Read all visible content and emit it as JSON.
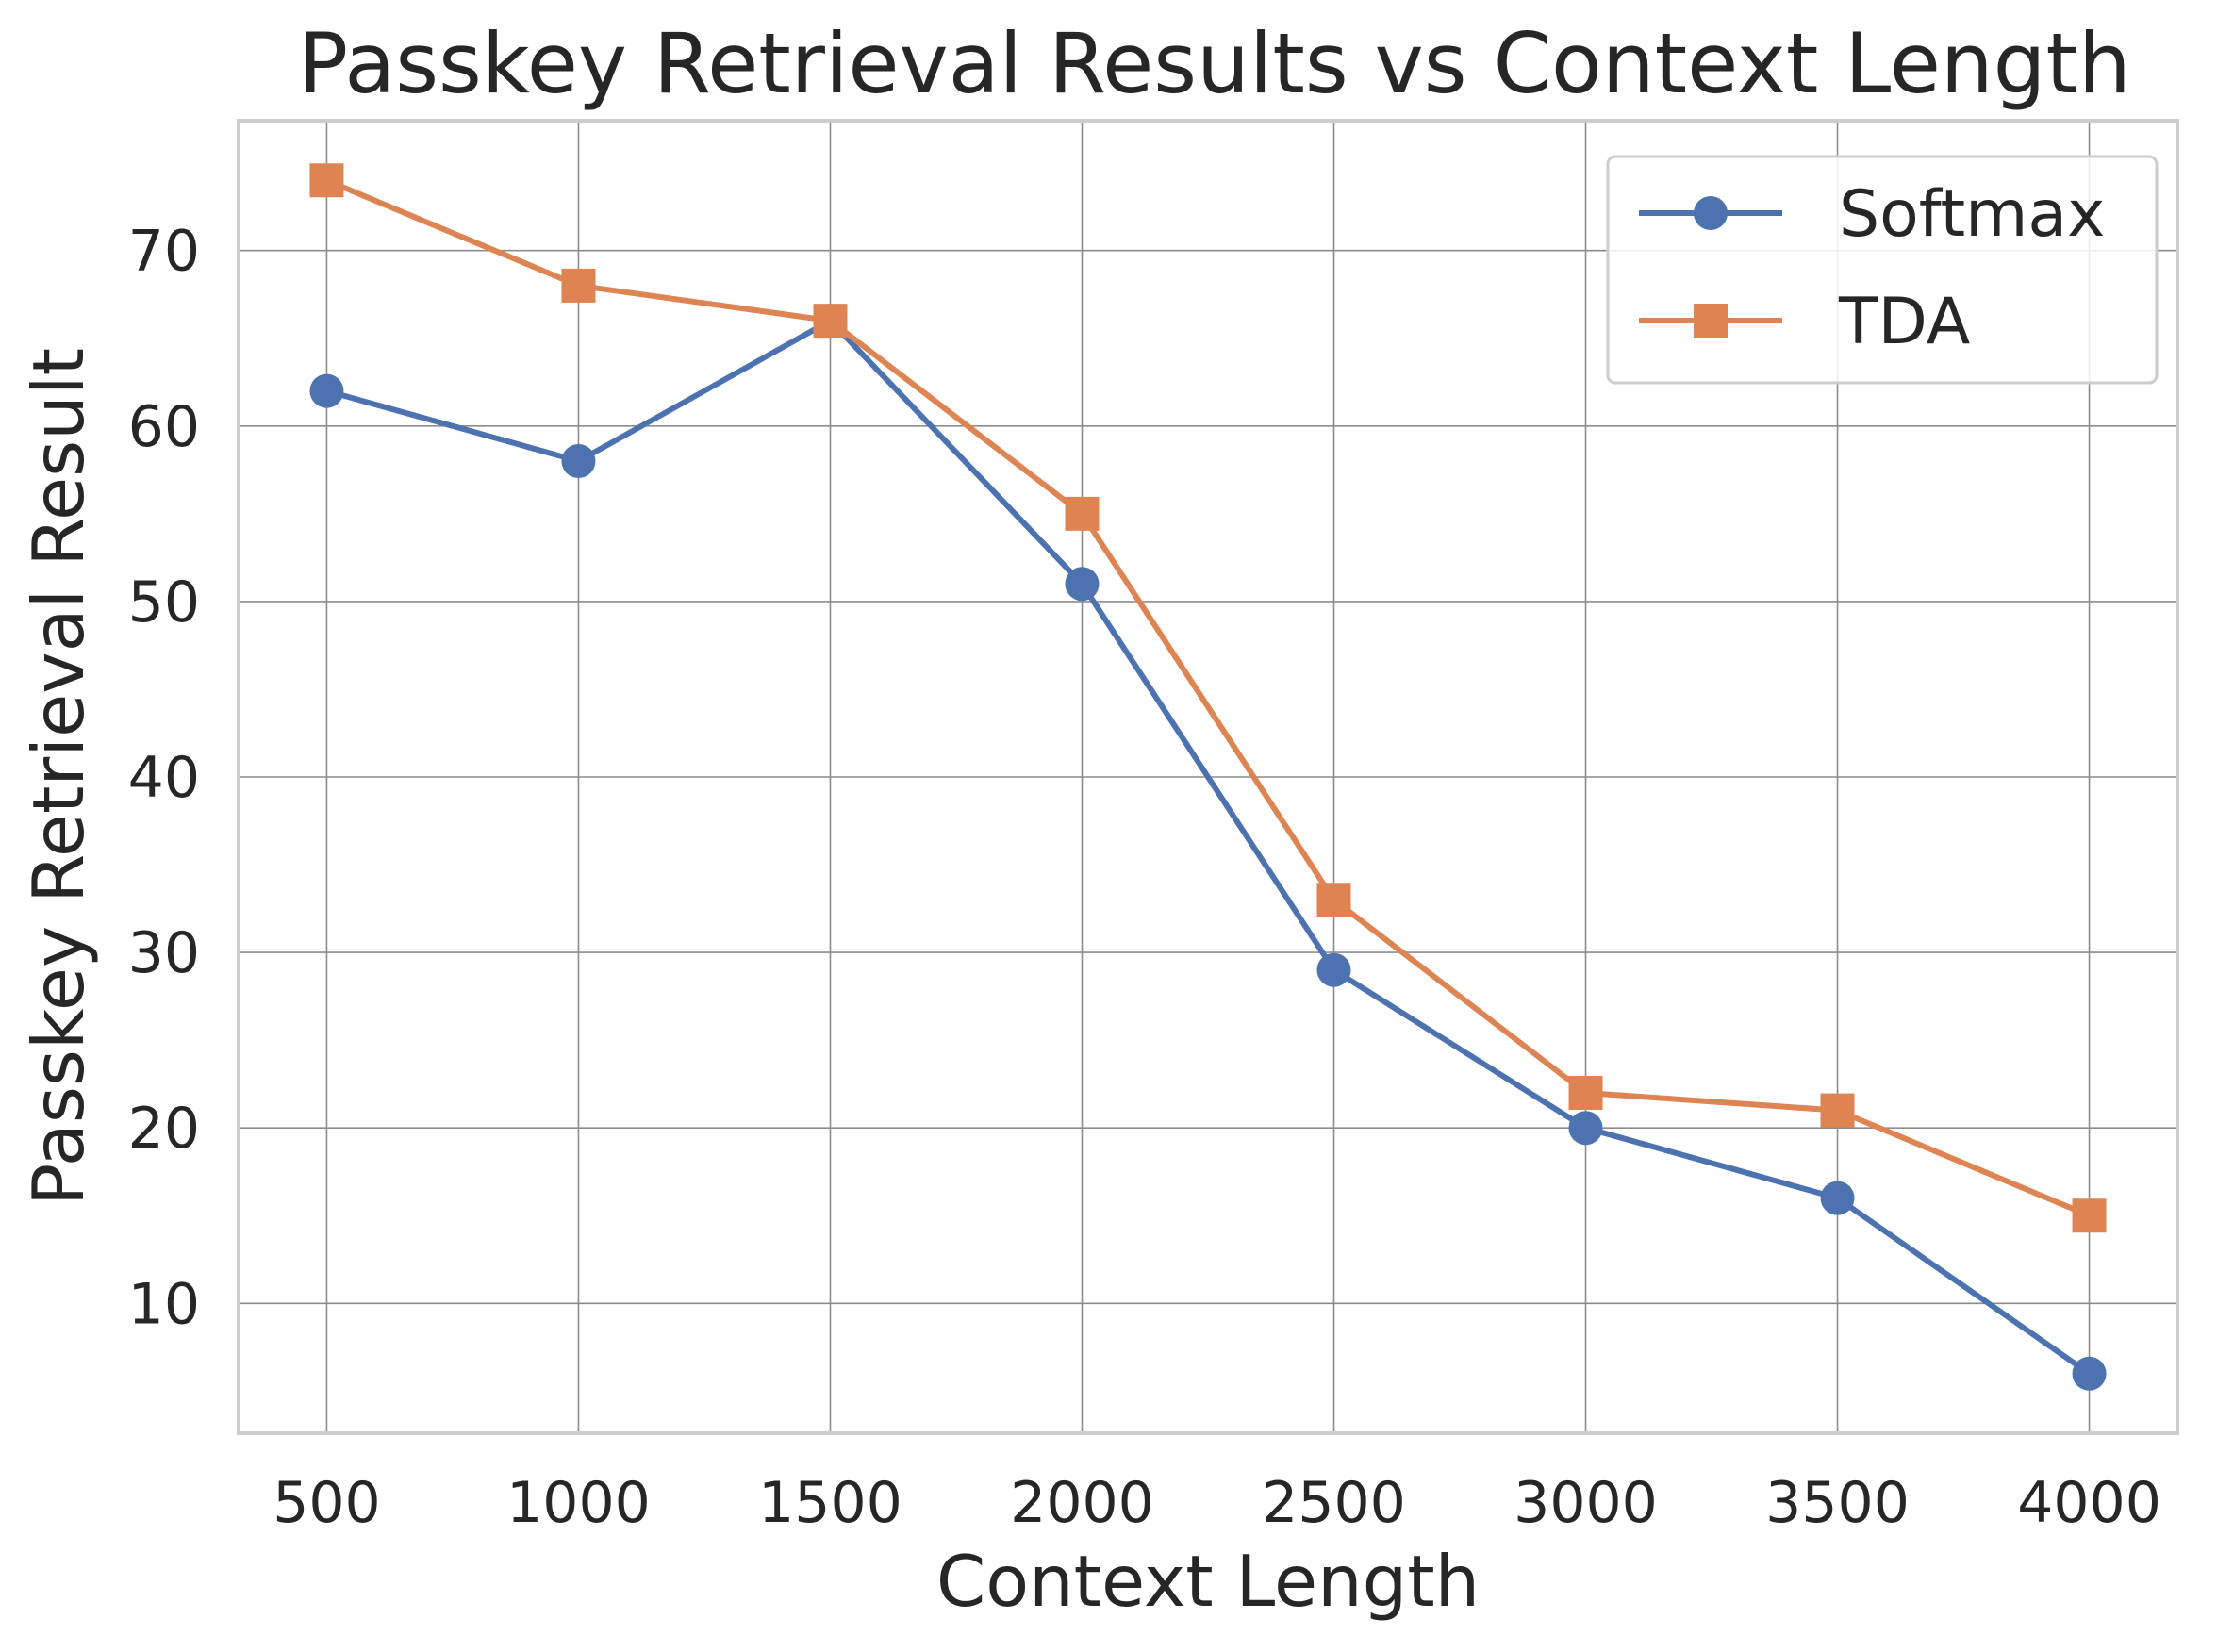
{
  "chart_data": {
    "type": "line",
    "title": "Passkey Retrieval Results vs Context Length",
    "xlabel": "Context Length",
    "ylabel": "Passkey Retrieval Result",
    "x": [
      500,
      1000,
      1500,
      2000,
      2500,
      3000,
      3500,
      4000
    ],
    "x_ticks": [
      "500",
      "1000",
      "1500",
      "2000",
      "2500",
      "3000",
      "3500",
      "4000"
    ],
    "y_ticks": [
      "10",
      "20",
      "30",
      "40",
      "50",
      "60",
      "70"
    ],
    "xlim": [
      325,
      4175
    ],
    "ylim": [
      2.6,
      77.4
    ],
    "grid": true,
    "legend_position": "top-right",
    "series": [
      {
        "name": "Softmax",
        "color": "#4c72b0",
        "marker": "circle",
        "values": [
          62,
          58,
          66,
          51,
          29,
          20,
          16,
          6
        ]
      },
      {
        "name": "TDA",
        "color": "#dd8452",
        "marker": "square",
        "values": [
          74,
          68,
          66,
          55,
          33,
          22,
          21,
          15
        ]
      }
    ]
  }
}
